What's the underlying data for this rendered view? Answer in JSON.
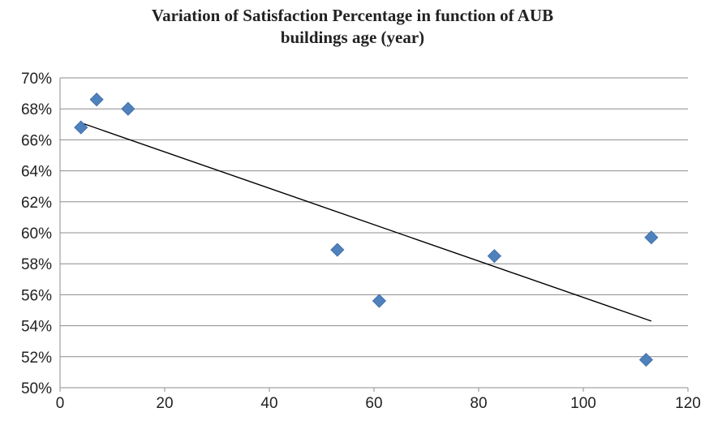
{
  "chart_data": {
    "type": "scatter",
    "title_line1": "Variation of Satisfaction Percentage in function of AUB",
    "title_line2": "buildings age (year)",
    "xlabel": "",
    "ylabel": "",
    "xlim": [
      0,
      120
    ],
    "ylim": [
      50,
      70
    ],
    "x_ticks": [
      0,
      20,
      40,
      60,
      80,
      100,
      120
    ],
    "y_ticks": [
      50,
      52,
      54,
      56,
      58,
      60,
      62,
      64,
      66,
      68,
      70
    ],
    "y_tick_suffix": "%",
    "grid": "horizontal",
    "legend": "none",
    "series": [
      {
        "marker": "diamond",
        "color": "#4f81bd",
        "points": [
          {
            "x": 4,
            "y": 66.8
          },
          {
            "x": 7,
            "y": 68.6
          },
          {
            "x": 13,
            "y": 68.0
          },
          {
            "x": 53,
            "y": 58.9
          },
          {
            "x": 61,
            "y": 55.6
          },
          {
            "x": 83,
            "y": 58.5
          },
          {
            "x": 112,
            "y": 51.8
          },
          {
            "x": 113,
            "y": 59.7
          }
        ]
      }
    ],
    "trendline": {
      "type": "linear",
      "color": "#000000",
      "start": {
        "x": 4,
        "y": 67.1
      },
      "end": {
        "x": 113,
        "y": 54.3
      }
    }
  }
}
